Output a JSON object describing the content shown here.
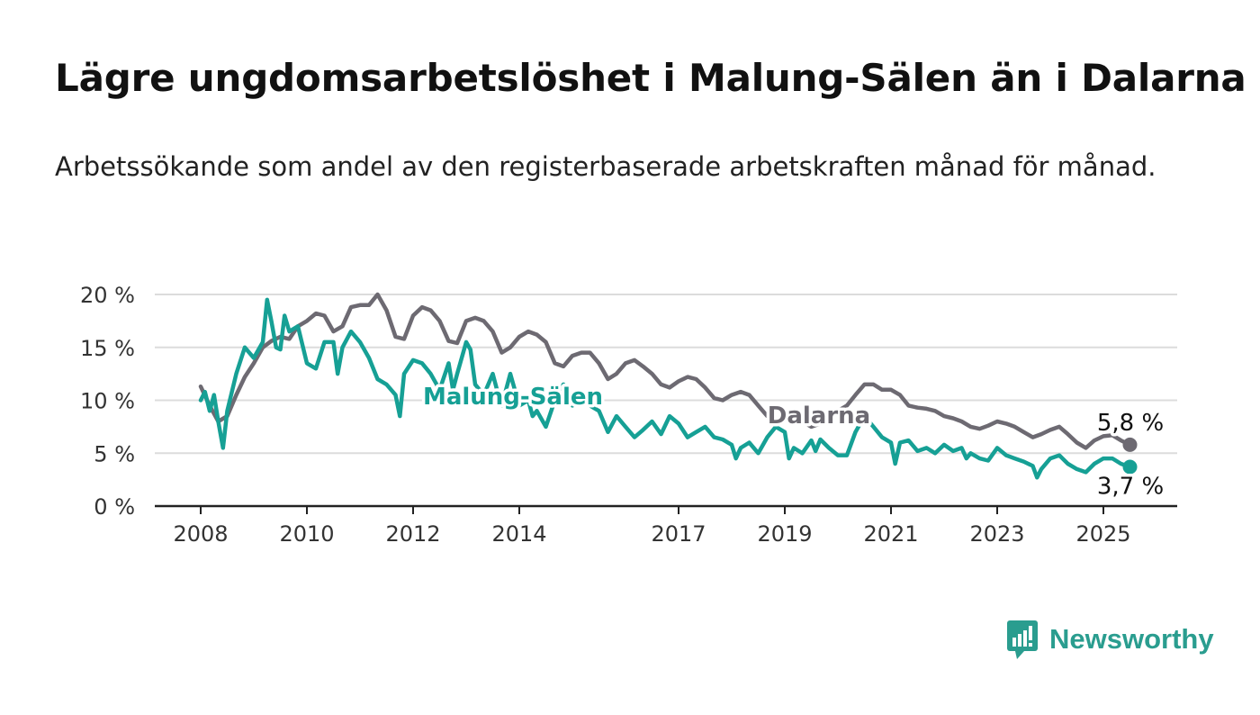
{
  "header": {
    "title": "Lägre ungdomsarbetslöshet i Malung-Sälen än i Dalarna",
    "subtitle": "Arbetssökande som andel av den registerbaserade arbetskraften månad för månad."
  },
  "logo": {
    "text": "Newsworthy",
    "icon": "newsworthy-logo-icon"
  },
  "colors": {
    "malung": "#16a095",
    "dalarna": "#6d6a72",
    "grid": "#dcdcdc",
    "axis": "#222222"
  },
  "chart_data": {
    "type": "line",
    "title": "Lägre ungdomsarbetslöshet i Malung-Sälen än i Dalarna",
    "subtitle": "Arbetssökande som andel av den registerbaserade arbetskraften månad för månad.",
    "ylim": [
      0,
      20
    ],
    "y_ticks": [
      0,
      5,
      10,
      15,
      20
    ],
    "y_tick_labels": [
      "0 %",
      "5 %",
      "10 %",
      "15 %",
      "20 %"
    ],
    "x_ticks": [
      2008,
      2010,
      2012,
      2014,
      2017,
      2019,
      2021,
      2023,
      2025
    ],
    "x_tick_labels": [
      "2008",
      "2010",
      "2012",
      "2014",
      "2017",
      "2019",
      "2021",
      "2023",
      "2025"
    ],
    "x_range": [
      2008.0,
      2025.5
    ],
    "grid": "horizontal",
    "series": [
      {
        "name": "Dalarna",
        "label": "Dalarna",
        "end_label": "5,8 %",
        "color": "#6d6a72",
        "points": [
          [
            2008.0,
            11.3
          ],
          [
            2008.17,
            9.5
          ],
          [
            2008.33,
            8.0
          ],
          [
            2008.5,
            8.5
          ],
          [
            2008.67,
            10.5
          ],
          [
            2008.83,
            12.2
          ],
          [
            2009.0,
            13.5
          ],
          [
            2009.17,
            15.0
          ],
          [
            2009.33,
            15.6
          ],
          [
            2009.5,
            16.0
          ],
          [
            2009.67,
            15.8
          ],
          [
            2009.83,
            17.0
          ],
          [
            2010.0,
            17.5
          ],
          [
            2010.17,
            18.2
          ],
          [
            2010.33,
            18.0
          ],
          [
            2010.5,
            16.5
          ],
          [
            2010.67,
            17.0
          ],
          [
            2010.83,
            18.8
          ],
          [
            2011.0,
            19.0
          ],
          [
            2011.17,
            19.0
          ],
          [
            2011.33,
            20.0
          ],
          [
            2011.5,
            18.5
          ],
          [
            2011.67,
            16.0
          ],
          [
            2011.83,
            15.8
          ],
          [
            2012.0,
            18.0
          ],
          [
            2012.17,
            18.8
          ],
          [
            2012.33,
            18.5
          ],
          [
            2012.5,
            17.5
          ],
          [
            2012.67,
            15.6
          ],
          [
            2012.83,
            15.4
          ],
          [
            2013.0,
            17.5
          ],
          [
            2013.17,
            17.8
          ],
          [
            2013.33,
            17.5
          ],
          [
            2013.5,
            16.5
          ],
          [
            2013.67,
            14.5
          ],
          [
            2013.83,
            15.0
          ],
          [
            2014.0,
            16.0
          ],
          [
            2014.17,
            16.5
          ],
          [
            2014.33,
            16.2
          ],
          [
            2014.5,
            15.5
          ],
          [
            2014.67,
            13.5
          ],
          [
            2014.83,
            13.2
          ],
          [
            2015.0,
            14.2
          ],
          [
            2015.17,
            14.5
          ],
          [
            2015.33,
            14.5
          ],
          [
            2015.5,
            13.5
          ],
          [
            2015.67,
            12.0
          ],
          [
            2015.83,
            12.5
          ],
          [
            2016.0,
            13.5
          ],
          [
            2016.17,
            13.8
          ],
          [
            2016.33,
            13.2
          ],
          [
            2016.5,
            12.5
          ],
          [
            2016.67,
            11.5
          ],
          [
            2016.83,
            11.2
          ],
          [
            2017.0,
            11.8
          ],
          [
            2017.17,
            12.2
          ],
          [
            2017.33,
            12.0
          ],
          [
            2017.5,
            11.2
          ],
          [
            2017.67,
            10.2
          ],
          [
            2017.83,
            10.0
          ],
          [
            2018.0,
            10.5
          ],
          [
            2018.17,
            10.8
          ],
          [
            2018.33,
            10.5
          ],
          [
            2018.5,
            9.5
          ],
          [
            2018.67,
            8.5
          ],
          [
            2018.83,
            8.2
          ],
          [
            2019.0,
            8.5
          ],
          [
            2019.17,
            8.5
          ],
          [
            2019.33,
            8.0
          ],
          [
            2019.5,
            7.5
          ],
          [
            2019.67,
            7.8
          ],
          [
            2019.83,
            8.5
          ],
          [
            2020.0,
            9.0
          ],
          [
            2020.17,
            9.5
          ],
          [
            2020.33,
            10.5
          ],
          [
            2020.5,
            11.5
          ],
          [
            2020.67,
            11.5
          ],
          [
            2020.83,
            11.0
          ],
          [
            2021.0,
            11.0
          ],
          [
            2021.17,
            10.5
          ],
          [
            2021.33,
            9.5
          ],
          [
            2021.5,
            9.3
          ],
          [
            2021.67,
            9.2
          ],
          [
            2021.83,
            9.0
          ],
          [
            2022.0,
            8.5
          ],
          [
            2022.17,
            8.3
          ],
          [
            2022.33,
            8.0
          ],
          [
            2022.5,
            7.5
          ],
          [
            2022.67,
            7.3
          ],
          [
            2022.83,
            7.6
          ],
          [
            2023.0,
            8.0
          ],
          [
            2023.17,
            7.8
          ],
          [
            2023.33,
            7.5
          ],
          [
            2023.5,
            7.0
          ],
          [
            2023.67,
            6.5
          ],
          [
            2023.83,
            6.8
          ],
          [
            2024.0,
            7.2
          ],
          [
            2024.17,
            7.5
          ],
          [
            2024.33,
            6.8
          ],
          [
            2024.5,
            6.0
          ],
          [
            2024.67,
            5.5
          ],
          [
            2024.83,
            6.2
          ],
          [
            2025.0,
            6.6
          ],
          [
            2025.17,
            6.7
          ],
          [
            2025.33,
            6.2
          ],
          [
            2025.5,
            5.8
          ]
        ]
      },
      {
        "name": "Malung-Sälen",
        "label": "Malung-Sälen",
        "end_label": "3,7 %",
        "color": "#16a095",
        "points": [
          [
            2008.0,
            10.0
          ],
          [
            2008.08,
            10.8
          ],
          [
            2008.17,
            9.0
          ],
          [
            2008.25,
            10.5
          ],
          [
            2008.33,
            8.0
          ],
          [
            2008.42,
            5.5
          ],
          [
            2008.5,
            9.0
          ],
          [
            2008.67,
            12.5
          ],
          [
            2008.83,
            15.0
          ],
          [
            2009.0,
            14.0
          ],
          [
            2009.17,
            15.5
          ],
          [
            2009.25,
            19.5
          ],
          [
            2009.33,
            17.5
          ],
          [
            2009.42,
            15.0
          ],
          [
            2009.5,
            14.8
          ],
          [
            2009.58,
            18.0
          ],
          [
            2009.67,
            16.5
          ],
          [
            2009.83,
            17.0
          ],
          [
            2010.0,
            13.5
          ],
          [
            2010.17,
            13.0
          ],
          [
            2010.33,
            15.5
          ],
          [
            2010.5,
            15.5
          ],
          [
            2010.58,
            12.5
          ],
          [
            2010.67,
            15.0
          ],
          [
            2010.83,
            16.5
          ],
          [
            2011.0,
            15.5
          ],
          [
            2011.17,
            14.0
          ],
          [
            2011.33,
            12.0
          ],
          [
            2011.5,
            11.5
          ],
          [
            2011.67,
            10.5
          ],
          [
            2011.75,
            8.5
          ],
          [
            2011.83,
            12.5
          ],
          [
            2012.0,
            13.8
          ],
          [
            2012.17,
            13.5
          ],
          [
            2012.33,
            12.5
          ],
          [
            2012.5,
            11.0
          ],
          [
            2012.67,
            13.5
          ],
          [
            2012.75,
            11.0
          ],
          [
            2012.83,
            12.5
          ],
          [
            2013.0,
            15.5
          ],
          [
            2013.08,
            14.8
          ],
          [
            2013.17,
            11.5
          ],
          [
            2013.33,
            10.5
          ],
          [
            2013.5,
            12.5
          ],
          [
            2013.58,
            11.0
          ],
          [
            2013.67,
            9.5
          ],
          [
            2013.83,
            12.5
          ],
          [
            2014.0,
            9.5
          ],
          [
            2014.17,
            10.0
          ],
          [
            2014.25,
            8.5
          ],
          [
            2014.33,
            9.0
          ],
          [
            2014.5,
            7.5
          ],
          [
            2014.67,
            10.0
          ],
          [
            2014.83,
            11.5
          ],
          [
            2015.0,
            9.5
          ],
          [
            2015.17,
            10.0
          ],
          [
            2015.33,
            9.5
          ],
          [
            2015.5,
            9.0
          ],
          [
            2015.67,
            7.0
          ],
          [
            2015.83,
            8.5
          ],
          [
            2016.0,
            7.5
          ],
          [
            2016.17,
            6.5
          ],
          [
            2016.33,
            7.2
          ],
          [
            2016.5,
            8.0
          ],
          [
            2016.67,
            6.8
          ],
          [
            2016.83,
            8.5
          ],
          [
            2017.0,
            7.8
          ],
          [
            2017.17,
            6.5
          ],
          [
            2017.33,
            7.0
          ],
          [
            2017.5,
            7.5
          ],
          [
            2017.67,
            6.5
          ],
          [
            2017.83,
            6.3
          ],
          [
            2018.0,
            5.8
          ],
          [
            2018.08,
            4.5
          ],
          [
            2018.17,
            5.5
          ],
          [
            2018.33,
            6.0
          ],
          [
            2018.5,
            5.0
          ],
          [
            2018.67,
            6.5
          ],
          [
            2018.83,
            7.5
          ],
          [
            2019.0,
            7.0
          ],
          [
            2019.08,
            4.5
          ],
          [
            2019.17,
            5.5
          ],
          [
            2019.33,
            5.0
          ],
          [
            2019.5,
            6.2
          ],
          [
            2019.58,
            5.2
          ],
          [
            2019.67,
            6.3
          ],
          [
            2019.83,
            5.5
          ],
          [
            2020.0,
            4.8
          ],
          [
            2020.17,
            4.8
          ],
          [
            2020.33,
            7.0
          ],
          [
            2020.5,
            8.5
          ],
          [
            2020.67,
            7.5
          ],
          [
            2020.83,
            6.5
          ],
          [
            2021.0,
            6.0
          ],
          [
            2021.08,
            4.0
          ],
          [
            2021.17,
            6.0
          ],
          [
            2021.33,
            6.2
          ],
          [
            2021.5,
            5.2
          ],
          [
            2021.67,
            5.5
          ],
          [
            2021.83,
            5.0
          ],
          [
            2022.0,
            5.8
          ],
          [
            2022.17,
            5.2
          ],
          [
            2022.33,
            5.5
          ],
          [
            2022.42,
            4.5
          ],
          [
            2022.5,
            5.0
          ],
          [
            2022.67,
            4.5
          ],
          [
            2022.83,
            4.3
          ],
          [
            2023.0,
            5.5
          ],
          [
            2023.17,
            4.8
          ],
          [
            2023.33,
            4.5
          ],
          [
            2023.5,
            4.2
          ],
          [
            2023.67,
            3.8
          ],
          [
            2023.75,
            2.7
          ],
          [
            2023.83,
            3.5
          ],
          [
            2024.0,
            4.5
          ],
          [
            2024.17,
            4.8
          ],
          [
            2024.33,
            4.0
          ],
          [
            2024.5,
            3.5
          ],
          [
            2024.67,
            3.2
          ],
          [
            2024.83,
            4.0
          ],
          [
            2025.0,
            4.5
          ],
          [
            2025.17,
            4.5
          ],
          [
            2025.33,
            4.0
          ],
          [
            2025.5,
            3.7
          ]
        ]
      }
    ]
  }
}
